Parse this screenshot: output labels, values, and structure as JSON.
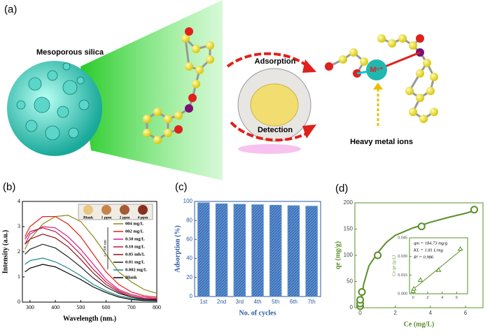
{
  "diagram": {
    "panel_label": "(a)",
    "silica_label": "Mesoporous silica",
    "adsorption_label": "Adsorption",
    "detection_label": "Detection",
    "ion_symbol": "Mⁿ⁺",
    "ion_label": "Heavy metal ions"
  },
  "chart_data": [
    {
      "type": "line",
      "panel_label": "(b)",
      "x_label": "Wavelength (nm.)",
      "y_label": "Intensity (a.u.)",
      "inset_labels": [
        "Blank",
        "1 ppm",
        "2 ppm",
        "4 ppm"
      ],
      "annotation": "λ= 500 nm",
      "x": [
        280,
        300,
        350,
        400,
        450,
        500,
        550,
        600,
        650,
        700,
        750,
        800
      ],
      "xlim": [
        270,
        800
      ],
      "xticks": [
        300,
        400,
        500,
        600,
        700,
        800
      ],
      "ylim": [
        0,
        4
      ],
      "yticks": [
        0,
        1,
        2,
        3,
        4
      ],
      "series": [
        {
          "name": "004 mg/L",
          "color": "#8a8a1a",
          "values": [
            2.1,
            2.5,
            3.1,
            3.4,
            3.45,
            3.2,
            2.6,
            1.9,
            1.2,
            0.8,
            0.5,
            0.35
          ]
        },
        {
          "name": "002 mg/L",
          "color": "#e0201c",
          "values": [
            2.6,
            3.0,
            3.4,
            3.4,
            3.1,
            2.6,
            1.9,
            1.2,
            0.7,
            0.4,
            0.25,
            0.2
          ]
        },
        {
          "name": "0.50 mg/L",
          "color": "#d81b8c",
          "values": [
            2.3,
            2.7,
            3.0,
            2.95,
            2.6,
            2.1,
            1.5,
            0.9,
            0.5,
            0.3,
            0.2,
            0.15
          ]
        },
        {
          "name": "0.10 mg/L",
          "color": "#c0183c",
          "values": [
            2.5,
            2.8,
            2.95,
            2.8,
            2.4,
            1.9,
            1.3,
            0.8,
            0.45,
            0.25,
            0.15,
            0.12
          ]
        },
        {
          "name": "0.05 mh/L",
          "color": "#8b1020",
          "values": [
            2.3,
            2.5,
            2.7,
            2.55,
            2.2,
            1.7,
            1.15,
            0.7,
            0.4,
            0.2,
            0.12,
            0.1
          ]
        },
        {
          "name": "0.01 mg/L",
          "color": "#222222",
          "values": [
            1.9,
            2.1,
            2.3,
            2.15,
            1.8,
            1.4,
            0.95,
            0.6,
            0.35,
            0.2,
            0.1,
            0.08
          ]
        },
        {
          "name": "0.002 mg/L",
          "color": "#1a8a8a",
          "values": [
            1.5,
            1.65,
            1.75,
            1.6,
            1.35,
            1.05,
            0.7,
            0.45,
            0.25,
            0.15,
            0.08,
            0.06
          ]
        },
        {
          "name": "Blank",
          "color": "#000000",
          "values": [
            1.2,
            1.35,
            1.5,
            1.4,
            1.15,
            0.9,
            0.6,
            0.38,
            0.2,
            0.1,
            0.06,
            0.05
          ]
        }
      ]
    },
    {
      "type": "bar",
      "panel_label": "(c)",
      "x_label": "No. of cycles",
      "y_label": "Adsorption (%)",
      "categories": [
        "1st",
        "2nd",
        "3rd",
        "4th",
        "5th",
        "6th",
        "7th"
      ],
      "values": [
        98.5,
        97.5,
        97,
        96.5,
        96,
        95.5,
        95
      ],
      "color": "#5b8fd0",
      "ylim": [
        0,
        100
      ],
      "yticks": [
        0,
        20,
        40,
        60,
        80,
        100
      ]
    },
    {
      "type": "scatter",
      "panel_label": "(d)",
      "x_label": "Ce (mg/L)",
      "y_label": "qe (mg/g)",
      "color": "#5a8f2a",
      "x": [
        0,
        0,
        0,
        0.1,
        1,
        3.5,
        6.5
      ],
      "values": [
        3,
        8,
        15,
        30,
        100,
        155,
        187
      ],
      "fit": {
        "x": [
          0,
          0.2,
          0.5,
          1,
          1.5,
          2,
          3,
          4,
          5,
          6,
          6.5
        ],
        "values": [
          0,
          45,
          80,
          105,
          125,
          138,
          152,
          163,
          172,
          180,
          185
        ]
      },
      "xlim": [
        -0.3,
        7
      ],
      "xticks": [
        0,
        2,
        4,
        6
      ],
      "ylim": [
        0,
        200
      ],
      "yticks": [
        0,
        50,
        100,
        150,
        200
      ],
      "inset": {
        "y_label": "Ce/qe (g/L)",
        "notes": [
          "qm = 184.73 mg/g",
          "KL = 1.81 L/mg",
          "R² = 0.986"
        ],
        "x": [
          0,
          0.1,
          1,
          3.5,
          6.5
        ],
        "values": [
          0.002,
          0.004,
          0.011,
          0.019,
          0.036
        ],
        "fit": {
          "x": [
            0,
            6.8
          ],
          "values": [
            0.0035,
            0.036
          ]
        },
        "xlim": [
          -0.5,
          7.5
        ],
        "xticks": [
          0,
          2,
          4,
          6
        ],
        "ylim": [
          0,
          0.045
        ],
        "yticks": [
          {
            "value": 0,
            "label": "0.000"
          },
          {
            "value": 0.015,
            "label": "0.015"
          },
          {
            "value": 0.03,
            "label": "0.030"
          },
          {
            "value": 0.045,
            "label": "0.045"
          }
        ]
      }
    }
  ]
}
